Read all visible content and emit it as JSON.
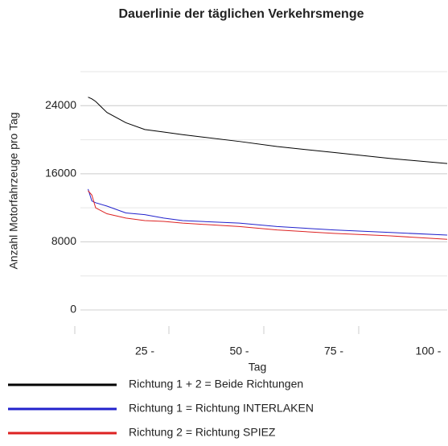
{
  "chart_data": {
    "type": "line",
    "title": "Dauerlinie der täglichen Verkehrsmenge",
    "x_label": "Tag",
    "y_label": "Anzahl Motorfahrzeuge pro Tag",
    "x": [
      10,
      11,
      12,
      15,
      20,
      25,
      30,
      35,
      50,
      60,
      75,
      90,
      105
    ],
    "series": [
      {
        "name": "Richtung 1 + 2 = Beide Richtungen",
        "color": "#000000",
        "values": [
          25000,
          24800,
          24500,
          23200,
          22000,
          21200,
          20900,
          20600,
          19800,
          19200,
          18500,
          17800,
          17200
        ]
      },
      {
        "name": "Richtung 1 = Richtung INTERLAKEN",
        "color": "#2222cc",
        "values": [
          14200,
          12800,
          12600,
          12200,
          11400,
          11200,
          10800,
          10500,
          10200,
          9800,
          9400,
          9100,
          8800
        ]
      },
      {
        "name": "Richtung 2 = Richtung SPIEZ",
        "color": "#dd2222",
        "values": [
          14000,
          13500,
          12000,
          11300,
          10800,
          10500,
          10400,
          10200,
          9800,
          9400,
          9000,
          8700,
          8300
        ]
      }
    ],
    "xlim": [
      0,
      105
    ],
    "xticks": [
      {
        "value": 25,
        "label": "25 -"
      },
      {
        "value": 50,
        "label": "50 -"
      },
      {
        "value": 75,
        "label": "75 -"
      },
      {
        "value": 100,
        "label": "100 -"
      }
    ],
    "ylim": [
      0,
      28000
    ],
    "yticks": [
      0,
      8000,
      16000,
      24000
    ],
    "ygrid": [
      0,
      4000,
      8000,
      12000,
      16000,
      20000,
      24000,
      28000
    ],
    "grid": true,
    "legend": "bottom"
  }
}
